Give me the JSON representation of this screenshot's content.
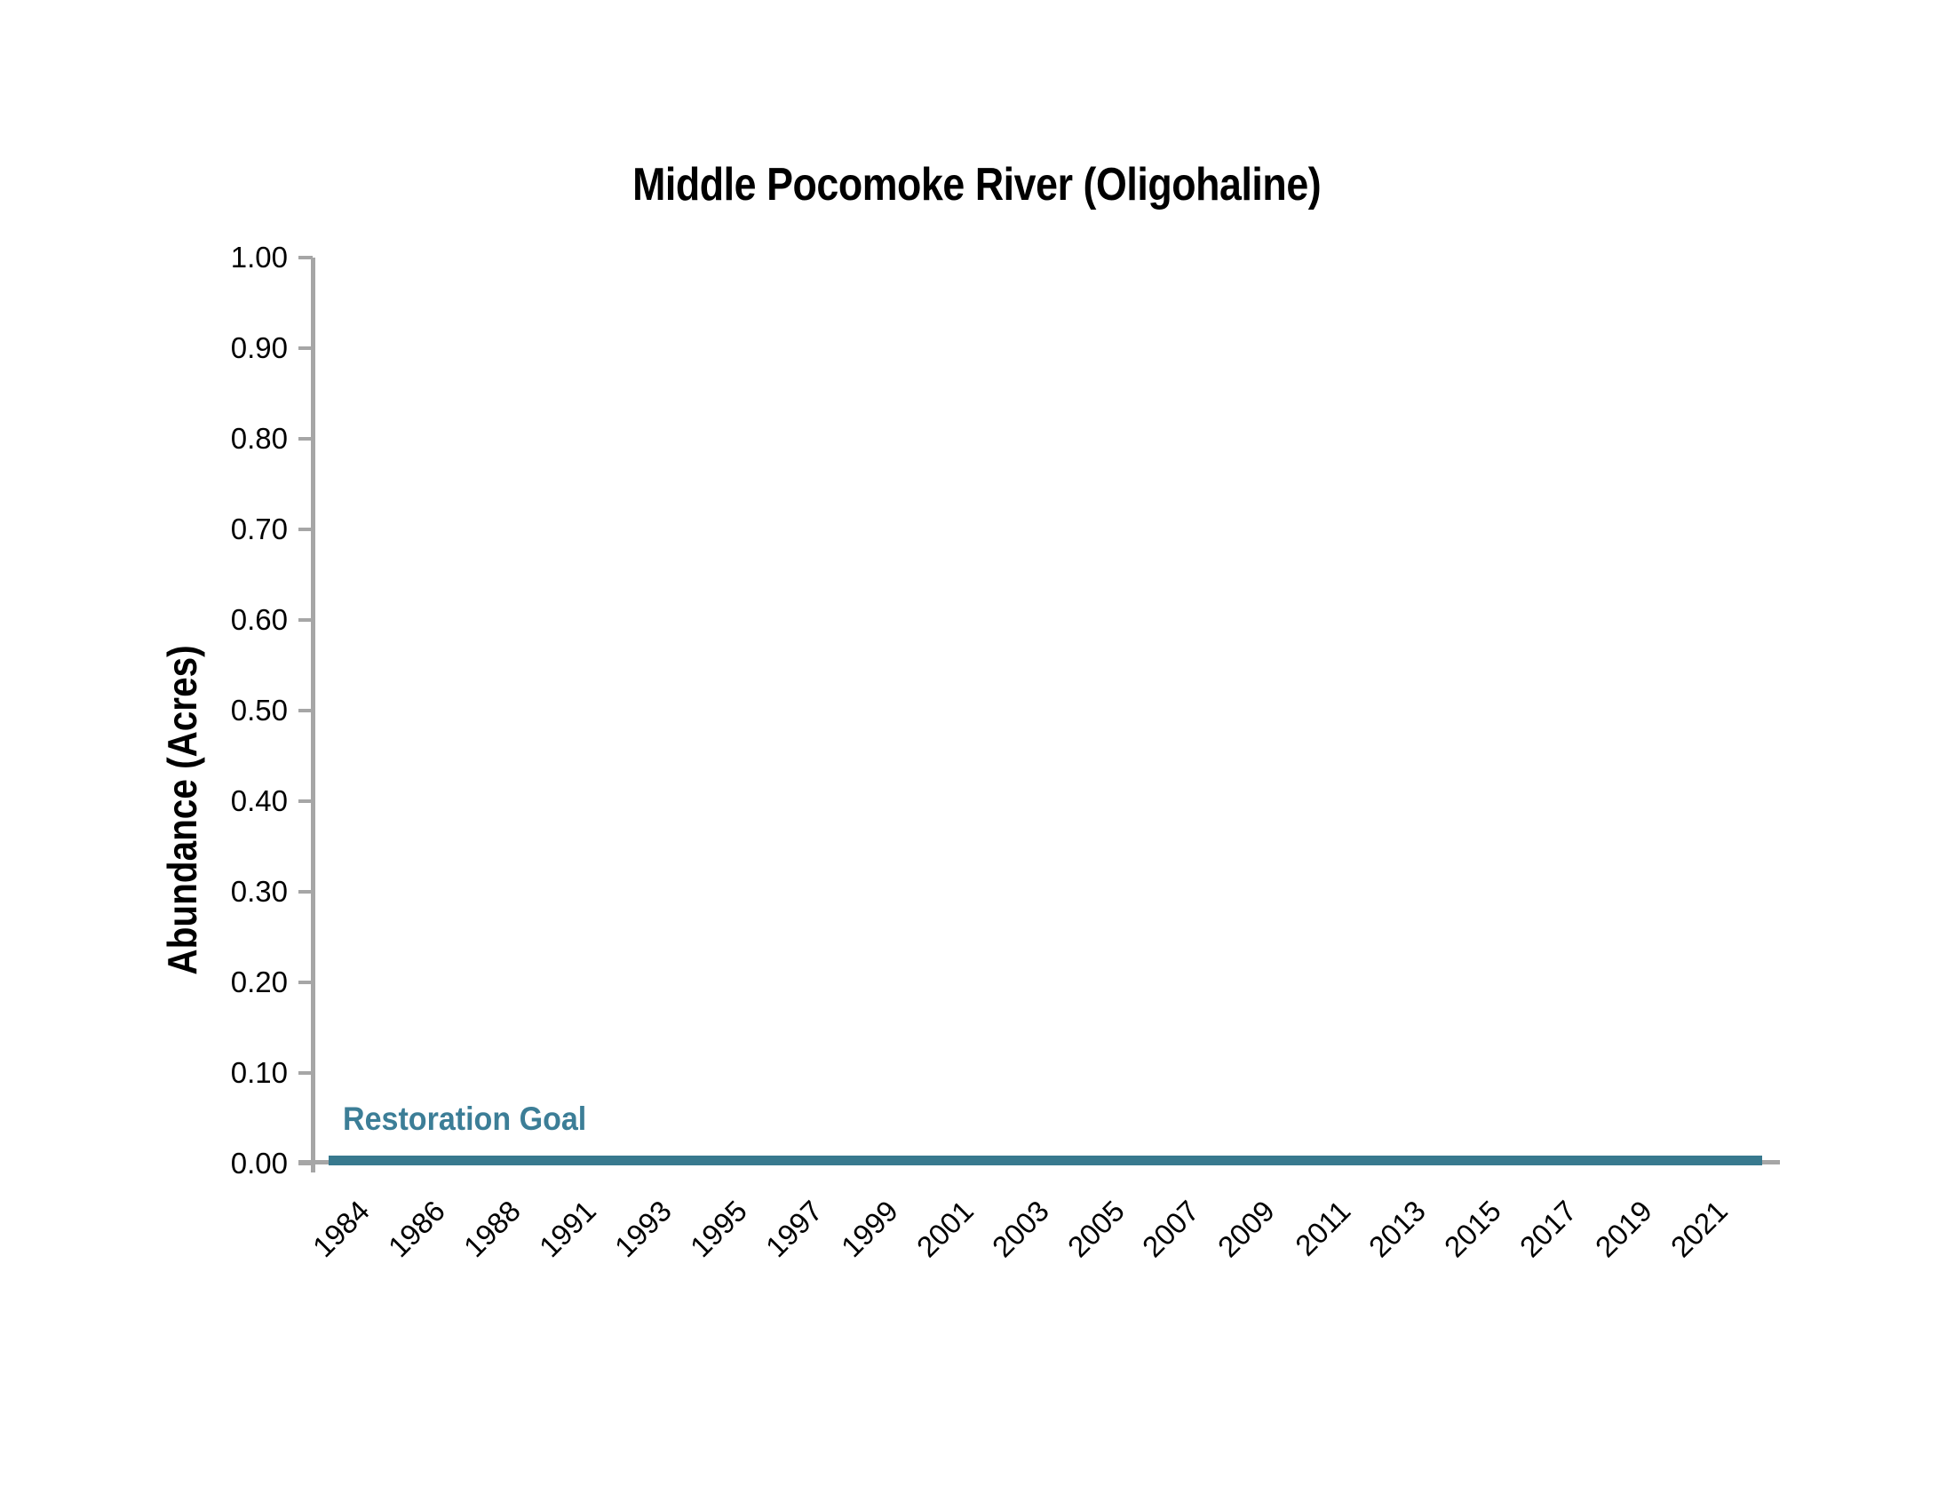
{
  "chart_data": {
    "type": "line",
    "title": "Middle Pocomoke River (Oligohaline)",
    "xlabel": "",
    "ylabel": "Abundance (Acres)",
    "ylim": [
      0.0,
      1.0
    ],
    "ytick_step": 0.1,
    "ytick_labels": [
      "0.00",
      "0.10",
      "0.20",
      "0.30",
      "0.40",
      "0.50",
      "0.60",
      "0.70",
      "0.80",
      "0.90",
      "1.00"
    ],
    "categories": [
      "1984",
      "1986",
      "1988",
      "1991",
      "1993",
      "1995",
      "1997",
      "1999",
      "2001",
      "2003",
      "2005",
      "2007",
      "2009",
      "2011",
      "2013",
      "2015",
      "2017",
      "2019",
      "2021"
    ],
    "grid": false,
    "legend_position": "none",
    "series": [
      {
        "name": "Restoration Goal",
        "type": "line",
        "color": "#38798E",
        "values": [
          0,
          0,
          0,
          0,
          0,
          0,
          0,
          0,
          0,
          0,
          0,
          0,
          0,
          0,
          0,
          0,
          0,
          0,
          0
        ]
      }
    ],
    "annotations": [
      {
        "text": "Restoration Goal",
        "color": "#3C7E97",
        "position": "above goal line at left"
      }
    ]
  },
  "labels": {
    "title": "Middle Pocomoke River (Oligohaline)",
    "y_axis_title": "Abundance (Acres)",
    "goal_label": "Restoration Goal"
  },
  "colors": {
    "goal_line": "#38798E",
    "goal_text": "#3C7E97",
    "axis": "#A6A6A6",
    "text": "#000000",
    "background": "#FFFFFF"
  }
}
